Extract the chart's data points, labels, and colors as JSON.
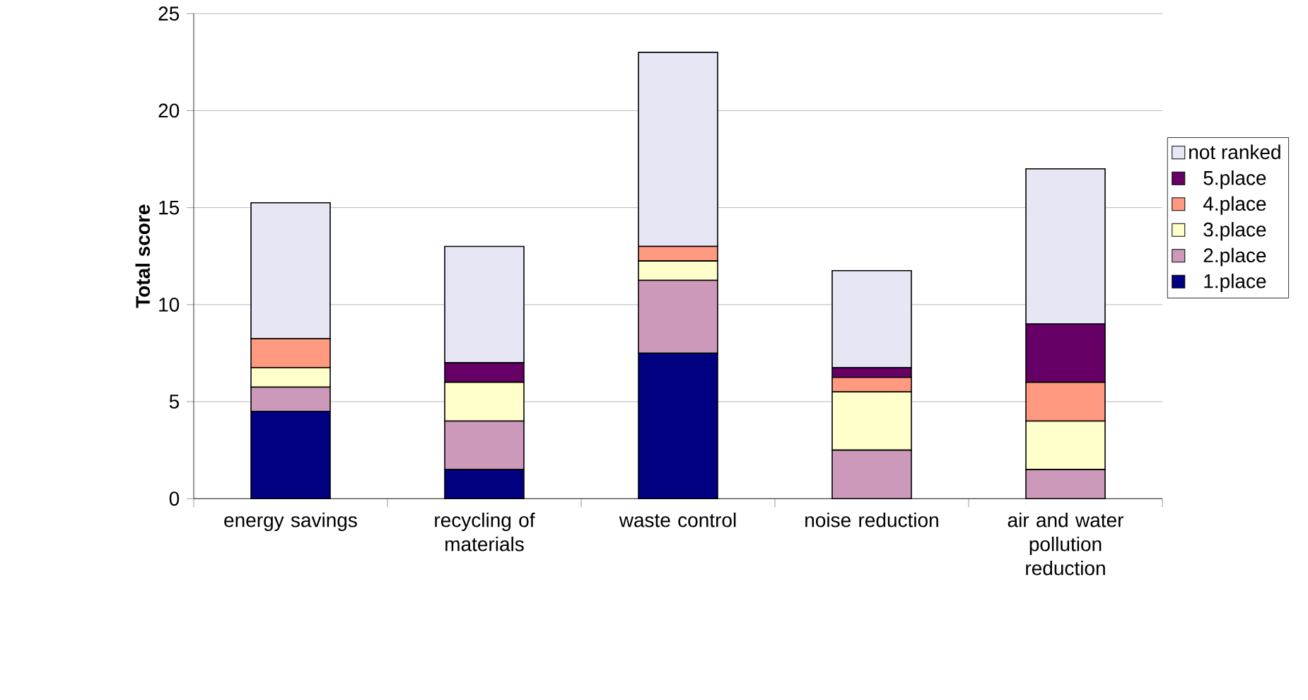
{
  "chart_data": {
    "type": "bar",
    "stacked": true,
    "ylabel": "Total score",
    "categories": [
      "energy savings",
      "recycling of materials",
      "waste control",
      "noise reduction",
      "air and water pollution reduction"
    ],
    "series": [
      {
        "name": "1.place",
        "color": "#000080",
        "values": [
          4.5,
          1.5,
          7.5,
          0,
          0
        ]
      },
      {
        "name": "2.place",
        "color": "#cc99bb",
        "values": [
          1.25,
          2.5,
          3.75,
          2.5,
          1.5
        ]
      },
      {
        "name": "3.place",
        "color": "#ffffcc",
        "values": [
          1,
          2,
          1,
          3,
          2.5
        ]
      },
      {
        "name": "4.place",
        "color": "#ff9980",
        "values": [
          1.5,
          0,
          0.75,
          0.75,
          2
        ]
      },
      {
        "name": "5.place",
        "color": "#660066",
        "values": [
          0,
          1,
          0,
          0.5,
          3
        ]
      },
      {
        "name": "not ranked",
        "color": "#e6e6f5",
        "values": [
          7,
          6,
          10,
          5,
          8
        ]
      }
    ],
    "ylim": [
      0,
      25
    ],
    "yticks": [
      0,
      5,
      10,
      15,
      20,
      25
    ],
    "grid": "y",
    "legend": "right"
  }
}
